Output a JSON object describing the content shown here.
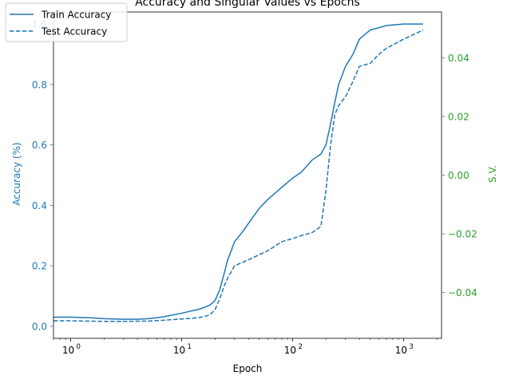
{
  "chart_data": {
    "type": "line",
    "title": "Accuracy and Singular Values vs Epochs",
    "xlabel": "Epoch",
    "ylabel": "Accuracy (%)",
    "y2label": "S.V.",
    "xscale": "log",
    "xlim": [
      0.7,
      2200
    ],
    "ylim": [
      -0.04,
      1.04
    ],
    "y2lim": [
      -0.0556,
      0.0556
    ],
    "grid": false,
    "legend": "top-left",
    "xticks": [
      {
        "value": 1,
        "label": "10",
        "exp": "0"
      },
      {
        "value": 10,
        "label": "10",
        "exp": "1"
      },
      {
        "value": 100,
        "label": "10",
        "exp": "2"
      },
      {
        "value": 1000,
        "label": "10",
        "exp": "3"
      }
    ],
    "yticks": [
      {
        "value": 0.0,
        "label": "0.0"
      },
      {
        "value": 0.2,
        "label": "0.2"
      },
      {
        "value": 0.4,
        "label": "0.4"
      },
      {
        "value": 0.6,
        "label": "0.6"
      },
      {
        "value": 0.8,
        "label": "0.8"
      },
      {
        "value": 1.0,
        "label": "1.0"
      }
    ],
    "y2ticks": [
      {
        "value": -0.04,
        "label": "−0.04"
      },
      {
        "value": -0.02,
        "label": "−0.02"
      },
      {
        "value": 0.0,
        "label": "0.00"
      },
      {
        "value": 0.02,
        "label": "0.02"
      },
      {
        "value": 0.04,
        "label": "0.04"
      }
    ],
    "series": [
      {
        "name": "Train Accuracy",
        "style": "solid",
        "color": "#1f77b4",
        "x": [
          0.7,
          1,
          1.5,
          2,
          3,
          4,
          5,
          6,
          7,
          8,
          10,
          12,
          14,
          16,
          18,
          20,
          22,
          24,
          26,
          28,
          30,
          35,
          40,
          50,
          60,
          80,
          100,
          120,
          150,
          180,
          200,
          220,
          240,
          260,
          300,
          350,
          400,
          500,
          700,
          1000,
          1500
        ],
        "y": [
          0.03,
          0.03,
          0.028,
          0.025,
          0.023,
          0.023,
          0.025,
          0.028,
          0.032,
          0.036,
          0.043,
          0.05,
          0.055,
          0.062,
          0.07,
          0.085,
          0.12,
          0.17,
          0.22,
          0.25,
          0.28,
          0.31,
          0.34,
          0.39,
          0.42,
          0.46,
          0.49,
          0.51,
          0.55,
          0.57,
          0.6,
          0.67,
          0.74,
          0.8,
          0.86,
          0.9,
          0.95,
          0.98,
          0.995,
          1.0,
          1.0
        ]
      },
      {
        "name": "Test Accuracy",
        "style": "dashed",
        "color": "#1f77b4",
        "x": [
          0.7,
          1,
          2,
          3,
          5,
          7,
          10,
          14,
          16,
          18,
          20,
          22,
          24,
          26,
          28,
          30,
          40,
          60,
          80,
          100,
          120,
          150,
          180,
          200,
          220,
          240,
          260,
          300,
          350,
          400,
          450,
          500,
          600,
          700,
          1000,
          1500
        ],
        "y": [
          0.018,
          0.018,
          0.016,
          0.016,
          0.017,
          0.02,
          0.024,
          0.028,
          0.032,
          0.038,
          0.055,
          0.09,
          0.13,
          0.16,
          0.18,
          0.2,
          0.22,
          0.25,
          0.28,
          0.29,
          0.3,
          0.31,
          0.33,
          0.45,
          0.6,
          0.7,
          0.73,
          0.76,
          0.81,
          0.86,
          0.865,
          0.87,
          0.9,
          0.92,
          0.95,
          0.98
        ]
      }
    ]
  }
}
